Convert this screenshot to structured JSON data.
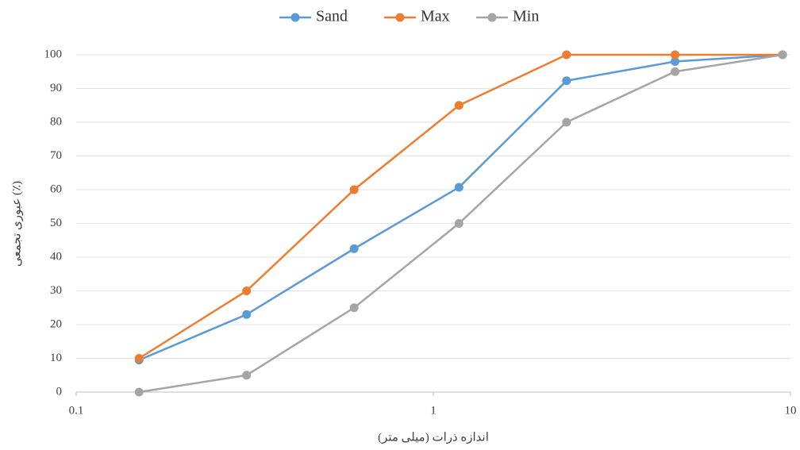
{
  "chart_data": {
    "type": "line",
    "xlabel": "اندازه ذرات (میلی متر)",
    "ylabel": "عبوری تجمعی (٪)",
    "x": [
      0.15,
      0.3,
      0.6,
      1.18,
      2.36,
      4.75,
      9.5
    ],
    "series": [
      {
        "name": "Sand",
        "color": "#5b9bd5",
        "values": [
          9.5,
          23,
          42.5,
          60.7,
          92.3,
          98,
          100
        ]
      },
      {
        "name": "Max",
        "color": "#ed7d31",
        "values": [
          10,
          30,
          60,
          85,
          100,
          100,
          100
        ]
      },
      {
        "name": "Min",
        "color": "#a5a5a5",
        "values": [
          0,
          5,
          25,
          50,
          80,
          95,
          100
        ]
      }
    ],
    "xscale": "log",
    "xlim": [
      0.1,
      10
    ],
    "xticks": [
      0.1,
      1,
      10
    ],
    "ylim": [
      0,
      100
    ],
    "yticks": [
      0,
      10,
      20,
      30,
      40,
      50,
      60,
      70,
      80,
      90,
      100
    ],
    "grid": true,
    "legend": "top"
  }
}
